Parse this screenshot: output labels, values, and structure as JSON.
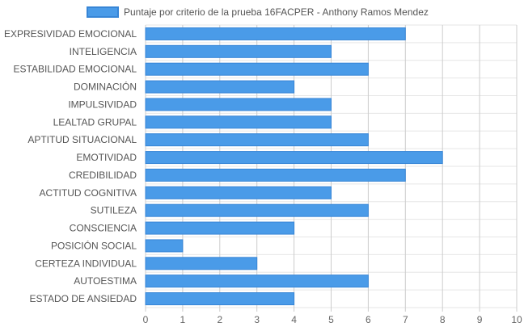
{
  "chart_data": {
    "type": "bar",
    "orientation": "horizontal",
    "legend": {
      "label": "Puntaje por criterio de la prueba 16FACPER - Anthony Ramos Mendez",
      "position": "top-center"
    },
    "categories": [
      "EXPRESIVIDAD EMOCIONAL",
      "INTELIGENCIA",
      "ESTABILIDAD EMOCIONAL",
      "DOMINACIÓN",
      "IMPULSIVIDAD",
      "LEALTAD GRUPAL",
      "APTITUD SITUACIONAL",
      "EMOTIVIDAD",
      "CREDIBILIDAD",
      "ACTITUD COGNITIVA",
      "SUTILEZA",
      "CONSCIENCIA",
      "POSICIÓN SOCIAL",
      "CERTEZA INDIVIDUAL",
      "AUTOESTIMA",
      "ESTADO DE ANSIEDAD"
    ],
    "series": [
      {
        "name": "Puntaje por criterio de la prueba 16FACPER - Anthony Ramos Mendez",
        "values": [
          7,
          5,
          6,
          4,
          5,
          5,
          6,
          8,
          7,
          5,
          6,
          4,
          1,
          3,
          6,
          4
        ]
      }
    ],
    "xlim": [
      0,
      10
    ],
    "xticks": [
      "0",
      "1",
      "2",
      "3",
      "4",
      "5",
      "6",
      "7",
      "8",
      "9",
      "10"
    ],
    "grid": true,
    "colors": {
      "bar_fill": "#4a9be8",
      "bar_stroke": "#3785d6",
      "grid_major": "#cccccc",
      "grid_minor": "#e6e6e6"
    }
  }
}
